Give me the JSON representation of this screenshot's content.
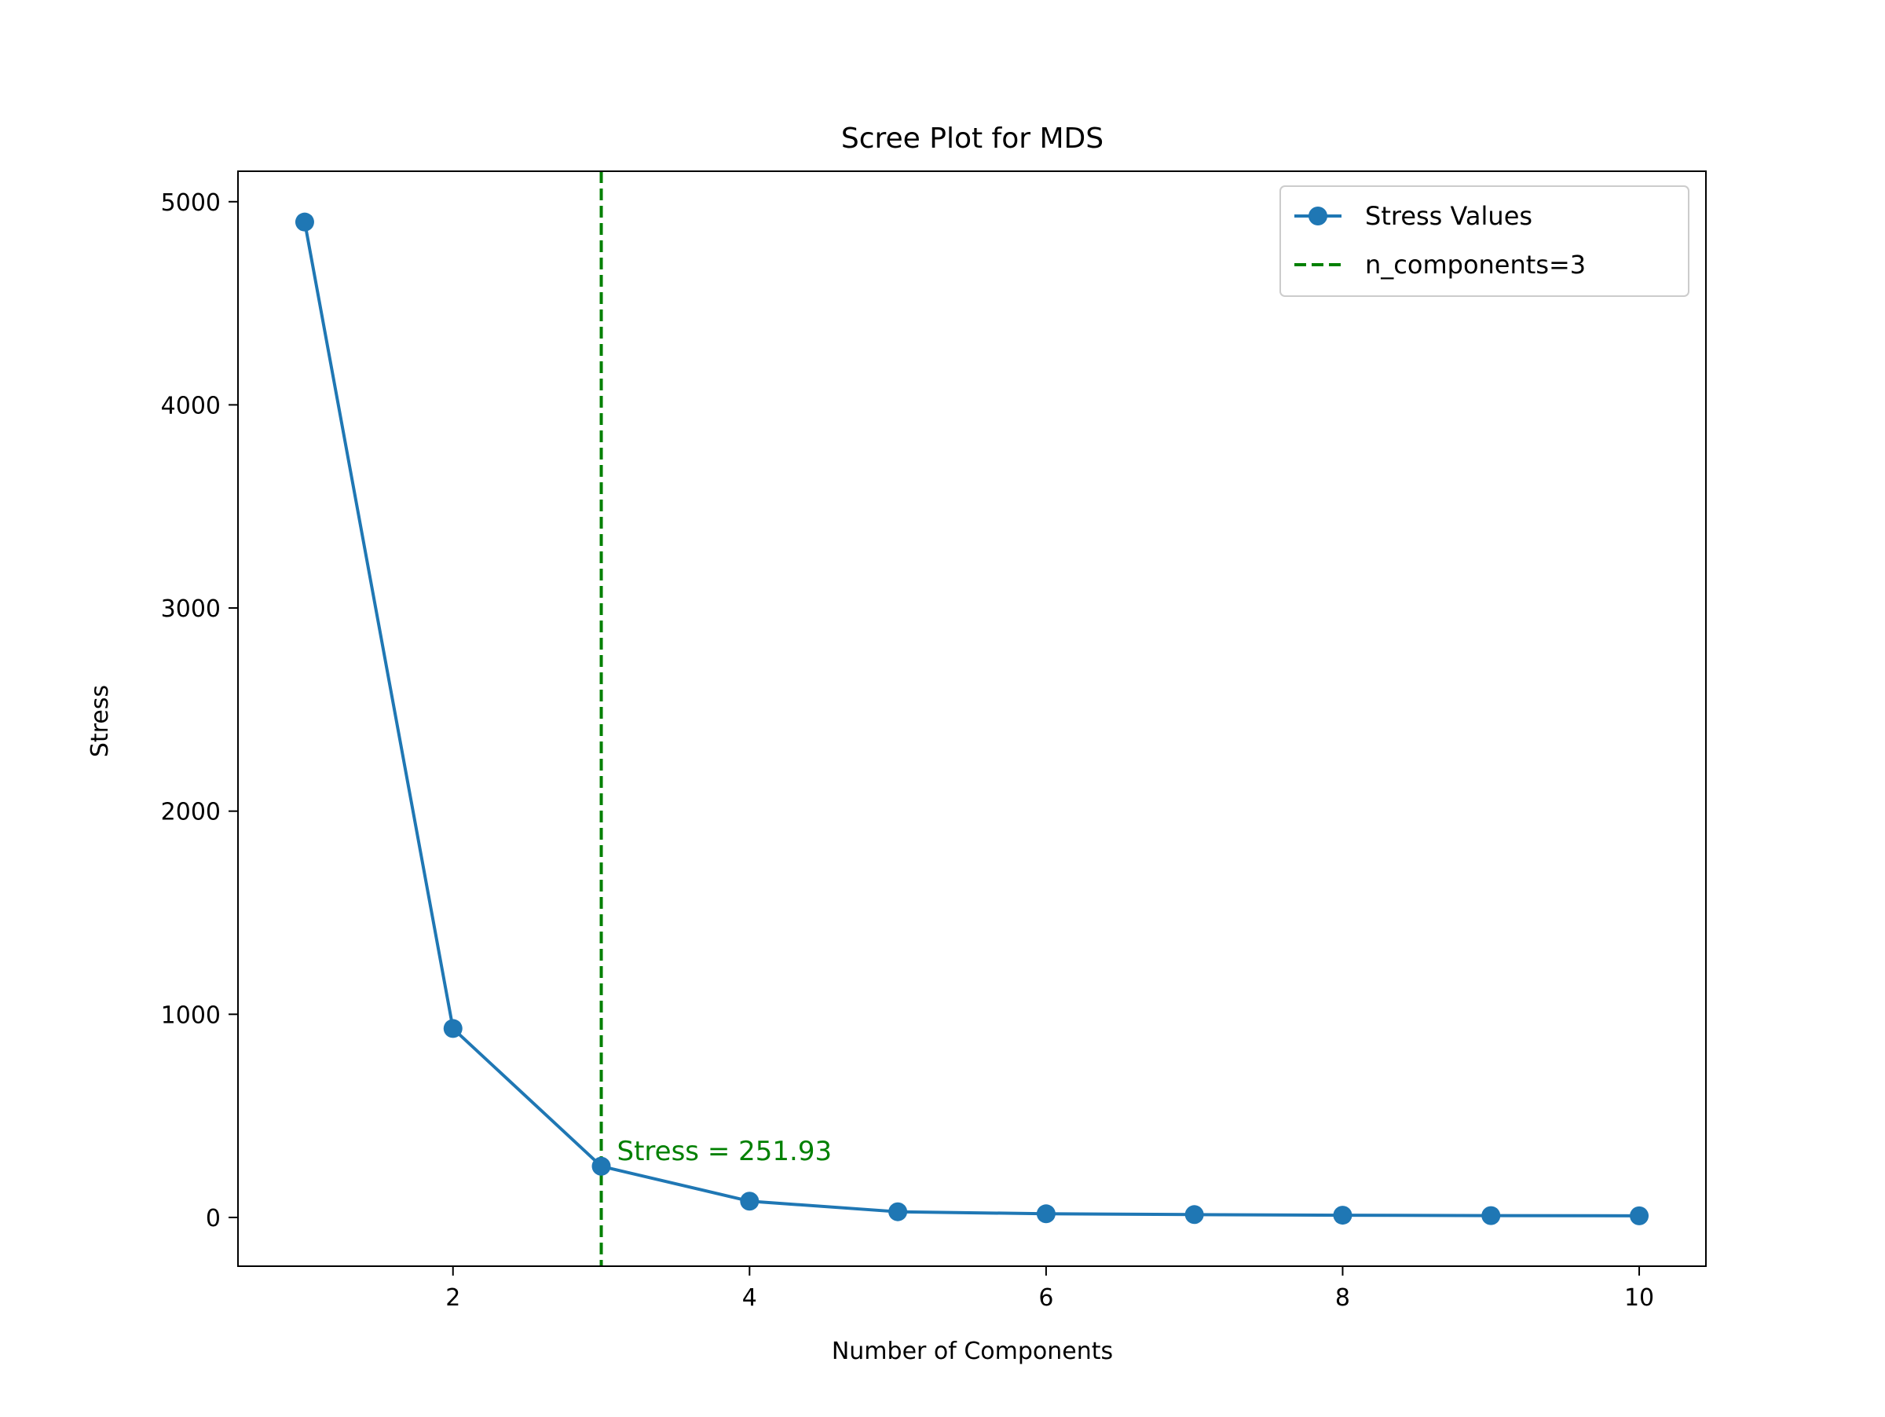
{
  "chart_data": {
    "type": "line",
    "title": "Scree Plot for MDS",
    "xlabel": "Number of Components",
    "ylabel": "Stress",
    "xlim": [
      0.55,
      10.45
    ],
    "ylim": [
      -240,
      5150
    ],
    "xticks": [
      2,
      4,
      6,
      8,
      10
    ],
    "yticks": [
      0,
      1000,
      2000,
      3000,
      4000,
      5000
    ],
    "grid": false,
    "legend_position": "top-right",
    "series": [
      {
        "name": "Stress Values",
        "color": "#1f77b4",
        "marker": "circle",
        "x": [
          1,
          2,
          3,
          4,
          5,
          6,
          7,
          8,
          9,
          10
        ],
        "y": [
          4900,
          930,
          251.93,
          80,
          28,
          18,
          14,
          11,
          9,
          8
        ]
      }
    ],
    "reference_lines": [
      {
        "name": "n_components=3",
        "orientation": "vertical",
        "x": 3,
        "color": "#008000",
        "style": "dashed"
      }
    ],
    "annotations": [
      {
        "text": "Stress = 251.93",
        "x": 3,
        "y": 251.93,
        "color": "#008000"
      }
    ]
  }
}
